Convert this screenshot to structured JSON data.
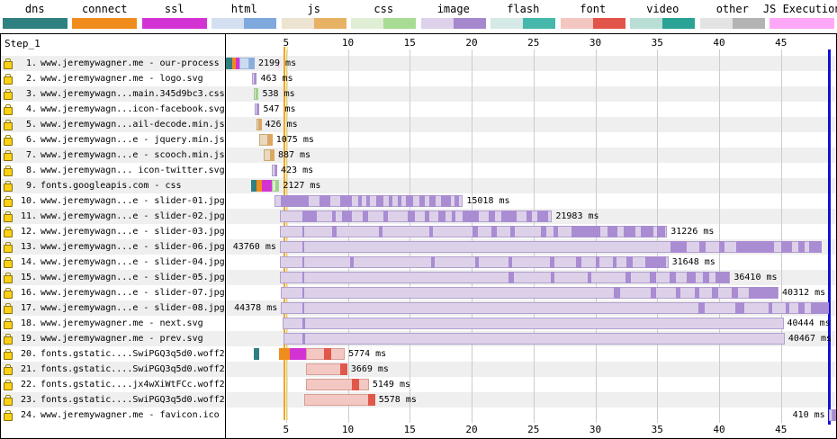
{
  "step_label": "Step_1",
  "legend": {
    "items": [
      {
        "label": "dns",
        "style": "solid",
        "color": "#2f8080"
      },
      {
        "label": "connect",
        "style": "solid",
        "color": "#f08c1c"
      },
      {
        "label": "ssl",
        "style": "solid",
        "color": "#d433d4"
      },
      {
        "label": "html",
        "style": "duo",
        "light": "#d2e0f2",
        "dark": "#7fa8dc"
      },
      {
        "label": "js",
        "style": "duo",
        "light": "#ece3d0",
        "dark": "#e8b265"
      },
      {
        "label": "css",
        "style": "duo",
        "light": "#e0eed6",
        "dark": "#a8dc94"
      },
      {
        "label": "image",
        "style": "duo",
        "light": "#ded2ea",
        "dark": "#a688ce"
      },
      {
        "label": "flash",
        "style": "duo",
        "light": "#d5eae6",
        "dark": "#45b8ab"
      },
      {
        "label": "font",
        "style": "duo",
        "light": "#f4c6c1",
        "dark": "#e25449"
      },
      {
        "label": "video",
        "style": "duo",
        "light": "#b8ded6",
        "dark": "#2aa396"
      },
      {
        "label": "other",
        "style": "duo",
        "light": "#e3e3e3",
        "dark": "#b3b3b3"
      },
      {
        "label": "JS Execution",
        "style": "solid",
        "color": "#ffa8f8"
      }
    ]
  },
  "colors": {
    "dns": "#2f8080",
    "connect": "#f08c1c",
    "ssl": "#d433d4",
    "html_l": "#ccdcf0",
    "html_d": "#88aede",
    "js_l": "#ead9bf",
    "js_d": "#e0a55e",
    "css_l": "#dcecd3",
    "css_d": "#9fd48c",
    "img_l": "#ddd1e9",
    "img_d": "#a98cd2",
    "font_l": "#f3c8c3",
    "font_d": "#e05849",
    "jsx": "#ff9cf0"
  },
  "borders": {
    "img_l": "#b1a0ce",
    "font_l": "#d89d94",
    "html_l": "#9cb4d8",
    "js_l": "#c8ab72",
    "css_l": "#a3c98f"
  },
  "chart_data": {
    "type": "waterfall",
    "title": "Step_1",
    "x_axis": {
      "unit": "seconds",
      "ticks": [
        5,
        10,
        15,
        20,
        25,
        30,
        35,
        40,
        45
      ],
      "range": [
        0,
        49.5
      ]
    },
    "events": [
      {
        "name": "start-render-line",
        "color": "#f2a71e",
        "t": 4.87,
        "width": 2
      },
      {
        "name": "first-paint-line",
        "color": "#ffe87a",
        "t": 5.13,
        "width": 1
      },
      {
        "name": "document-complete-line",
        "color": "#1010dd",
        "t": 48.9,
        "width": 3
      }
    ],
    "rows": [
      {
        "n": 1,
        "url": "www.jeremywagner.me - our-process",
        "ms": 2199,
        "ms_label": "2199 ms",
        "label_side": "after",
        "secure": true,
        "segments": [
          [
            "dns",
            0.07,
            0.62
          ],
          [
            "connect",
            0.62,
            0.98
          ],
          [
            "ssl",
            0.98,
            1.27
          ],
          [
            "html_l",
            1.27,
            2.04
          ],
          [
            "html_d",
            2.04,
            2.47
          ],
          [
            "jsx",
            4.33,
            4.47
          ]
        ]
      },
      {
        "n": 2,
        "url": "www.jeremywagner.me - logo.svg",
        "ms": 463,
        "ms_label": "463 ms",
        "label_side": "after",
        "secure": true,
        "segments": [
          [
            "img_l",
            2.25,
            2.47
          ],
          [
            "img_d",
            2.47,
            2.65
          ]
        ]
      },
      {
        "n": 3,
        "url": "www.jeremywagn...main.345d9bc3.css",
        "ms": 538,
        "ms_label": "538 ms",
        "label_side": "after",
        "secure": true,
        "segments": [
          [
            "css_l",
            2.4,
            2.62
          ],
          [
            "css_d",
            2.62,
            2.8
          ]
        ]
      },
      {
        "n": 4,
        "url": "www.jeremywagn...icon-facebook.svg",
        "ms": 547,
        "ms_label": "547 ms",
        "label_side": "after",
        "secure": true,
        "segments": [
          [
            "img_l",
            2.47,
            2.69
          ],
          [
            "img_d",
            2.69,
            2.87
          ]
        ]
      },
      {
        "n": 5,
        "url": "www.jeremywagn...ail-decode.min.js",
        "ms": 426,
        "ms_label": "426 ms",
        "label_side": "after",
        "secure": true,
        "segments": [
          [
            "js_l",
            2.62,
            2.84
          ],
          [
            "js_d",
            2.84,
            3.02
          ]
        ]
      },
      {
        "n": 6,
        "url": "www.jeremywagn...e - jquery.min.js",
        "ms": 1075,
        "ms_label": "1075 ms",
        "label_side": "after",
        "secure": true,
        "segments": [
          [
            "js_l",
            2.84,
            3.56
          ],
          [
            "js_d",
            3.56,
            3.91
          ]
        ]
      },
      {
        "n": 7,
        "url": "www.jeremywagn...e - scooch.min.js",
        "ms": 887,
        "ms_label": "887 ms",
        "label_side": "after",
        "secure": true,
        "segments": [
          [
            "js_l",
            3.2,
            3.78
          ],
          [
            "js_d",
            3.78,
            4.07
          ]
        ]
      },
      {
        "n": 8,
        "url": "www.jeremywagn... icon-twitter.svg",
        "ms": 423,
        "ms_label": "423 ms",
        "label_side": "after",
        "secure": true,
        "segments": [
          [
            "img_l",
            3.85,
            4.15
          ],
          [
            "img_d",
            4.15,
            4.29
          ]
        ]
      },
      {
        "n": 9,
        "url": "fonts.googleapis.com - css",
        "ms": 2127,
        "ms_label": "2127 ms",
        "label_side": "after",
        "secure": true,
        "segments": [
          [
            "dns",
            2.18,
            2.62
          ],
          [
            "connect",
            2.62,
            3.05
          ],
          [
            "ssl",
            3.05,
            3.85
          ],
          [
            "css_l",
            3.85,
            4.22
          ],
          [
            "css_d",
            4.22,
            4.46
          ]
        ]
      },
      {
        "n": 10,
        "url": "www.jeremywagn...e - slider-01.jpg",
        "ms": 15018,
        "ms_label": "15018 ms",
        "label_side": "after",
        "secure": true,
        "segments": [
          [
            "img_l",
            4.07,
            19.3
          ],
          [
            "img_d",
            4.55,
            6.8
          ],
          [
            "img_d",
            7.7,
            8.6
          ],
          [
            "img_d",
            9.4,
            10.3
          ],
          [
            "img_d",
            10.8,
            11.1
          ],
          [
            "img_d",
            11.5,
            11.8
          ],
          [
            "img_d",
            12.3,
            12.9
          ],
          [
            "img_d",
            13.3,
            13.6
          ],
          [
            "img_d",
            14.0,
            14.3
          ],
          [
            "img_d",
            14.7,
            15.3
          ],
          [
            "img_d",
            15.8,
            16.2
          ],
          [
            "img_d",
            16.6,
            17.1
          ],
          [
            "img_d",
            17.5,
            18.3
          ],
          [
            "img_d",
            18.6,
            19.0
          ]
        ]
      },
      {
        "n": 11,
        "url": "www.jeremywagn...e - slider-02.jpg",
        "ms": 21983,
        "ms_label": "21983 ms",
        "label_side": "after",
        "secure": true,
        "segments": [
          [
            "img_l",
            4.5,
            26.5
          ],
          [
            "img_d",
            6.3,
            7.5
          ],
          [
            "img_d",
            8.7,
            9.0
          ],
          [
            "img_d",
            9.5,
            10.3
          ],
          [
            "img_d",
            11.2,
            11.6
          ],
          [
            "img_d",
            12.9,
            13.2
          ],
          [
            "img_d",
            14.8,
            15.4
          ],
          [
            "img_d",
            16.2,
            16.6
          ],
          [
            "img_d",
            17.3,
            17.9
          ],
          [
            "img_d",
            18.4,
            18.7
          ],
          [
            "img_d",
            19.3,
            20.6
          ],
          [
            "img_d",
            21.4,
            21.9
          ],
          [
            "img_d",
            22.4,
            23.6
          ],
          [
            "img_d",
            24.4,
            24.9
          ],
          [
            "img_d",
            25.3,
            26.2
          ]
        ]
      },
      {
        "n": 12,
        "url": "www.jeremywagn...e - slider-03.jpg",
        "ms": 31226,
        "ms_label": "31226 ms",
        "label_side": "after",
        "secure": true,
        "segments": [
          [
            "img_l",
            4.5,
            35.8
          ],
          [
            "img_d",
            6.35,
            6.5
          ],
          [
            "img_d",
            8.7,
            9.1
          ],
          [
            "img_d",
            12.5,
            12.8
          ],
          [
            "img_d",
            16.6,
            16.9
          ],
          [
            "img_d",
            20.1,
            20.5
          ],
          [
            "img_d",
            21.6,
            22.0
          ],
          [
            "img_d",
            23.1,
            23.5
          ],
          [
            "img_d",
            25.6,
            26.0
          ],
          [
            "img_d",
            26.6,
            27.0
          ],
          [
            "img_d",
            28.1,
            30.4
          ],
          [
            "img_d",
            31.0,
            31.8
          ],
          [
            "img_d",
            32.3,
            33.2
          ],
          [
            "img_d",
            33.7,
            34.7
          ],
          [
            "img_d",
            35.0,
            35.6
          ]
        ]
      },
      {
        "n": 13,
        "url": "www.jeremywagn...e - slider-06.jpg",
        "ms": 43760,
        "ms_label": "43760 ms",
        "label_side": "before",
        "secure": true,
        "segments": [
          [
            "img_l",
            4.5,
            48.3
          ],
          [
            "img_d",
            6.35,
            6.5
          ],
          [
            "img_d",
            36.1,
            37.4
          ],
          [
            "img_d",
            38.4,
            38.9
          ],
          [
            "img_d",
            40.0,
            40.4
          ],
          [
            "img_d",
            41.4,
            44.4
          ],
          [
            "img_d",
            45.0,
            45.9
          ],
          [
            "img_d",
            46.4,
            46.9
          ],
          [
            "img_d",
            47.3,
            48.3
          ]
        ]
      },
      {
        "n": 14,
        "url": "www.jeremywagn...e - slider-04.jpg",
        "ms": 31648,
        "ms_label": "31648 ms",
        "label_side": "after",
        "secure": true,
        "segments": [
          [
            "img_l",
            4.5,
            35.9
          ],
          [
            "img_d",
            6.35,
            6.5
          ],
          [
            "img_d",
            10.2,
            10.5
          ],
          [
            "img_d",
            16.7,
            17.0
          ],
          [
            "img_d",
            20.3,
            20.6
          ],
          [
            "img_d",
            23.0,
            23.3
          ],
          [
            "img_d",
            26.3,
            26.7
          ],
          [
            "img_d",
            28.4,
            28.9
          ],
          [
            "img_d",
            30.0,
            30.3
          ],
          [
            "img_d",
            31.4,
            31.7
          ],
          [
            "img_d",
            32.5,
            33.0
          ],
          [
            "img_d",
            34.0,
            35.7
          ]
        ]
      },
      {
        "n": 15,
        "url": "www.jeremywagn...e - slider-05.jpg",
        "ms": 36410,
        "ms_label": "36410 ms",
        "label_side": "after",
        "secure": true,
        "segments": [
          [
            "img_l",
            4.5,
            40.9
          ],
          [
            "img_d",
            6.35,
            6.5
          ],
          [
            "img_d",
            23.0,
            23.4
          ],
          [
            "img_d",
            26.4,
            26.7
          ],
          [
            "img_d",
            29.4,
            29.7
          ],
          [
            "img_d",
            32.4,
            32.9
          ],
          [
            "img_d",
            34.4,
            34.9
          ],
          [
            "img_d",
            36.0,
            36.5
          ],
          [
            "img_d",
            37.4,
            38.1
          ],
          [
            "img_d",
            38.7,
            39.2
          ],
          [
            "img_d",
            39.7,
            40.8
          ]
        ]
      },
      {
        "n": 16,
        "url": "www.jeremywagn...e - slider-07.jpg",
        "ms": 40312,
        "ms_label": "40312 ms",
        "label_side": "after",
        "secure": true,
        "segments": [
          [
            "img_l",
            4.6,
            44.8
          ],
          [
            "img_d",
            6.35,
            6.5
          ],
          [
            "img_d",
            31.5,
            32.0
          ],
          [
            "img_d",
            34.5,
            34.9
          ],
          [
            "img_d",
            36.5,
            36.9
          ],
          [
            "img_d",
            38.0,
            38.4
          ],
          [
            "img_d",
            39.4,
            39.9
          ],
          [
            "img_d",
            41.0,
            41.5
          ],
          [
            "img_d",
            42.4,
            44.7
          ]
        ]
      },
      {
        "n": 17,
        "url": "www.jeremywagn...e - slider-08.jpg",
        "ms": 44378,
        "ms_label": "44378 ms",
        "label_side": "before",
        "secure": true,
        "segments": [
          [
            "img_l",
            4.6,
            48.9
          ],
          [
            "img_d",
            6.35,
            6.5
          ],
          [
            "img_d",
            38.3,
            38.8
          ],
          [
            "img_d",
            41.3,
            42.0
          ],
          [
            "img_d",
            44.0,
            44.3
          ],
          [
            "img_d",
            45.4,
            45.7
          ],
          [
            "img_d",
            46.4,
            46.9
          ],
          [
            "img_d",
            47.4,
            48.85
          ]
        ]
      },
      {
        "n": 18,
        "url": "www.jeremywagner.me - next.svg",
        "ms": 40444,
        "ms_label": "40444 ms",
        "label_side": "after",
        "secure": true,
        "segments": [
          [
            "img_l",
            4.75,
            45.2
          ],
          [
            "img_d",
            6.35,
            6.55
          ]
        ]
      },
      {
        "n": 19,
        "url": "www.jeremywagner.me - prev.svg",
        "ms": 40467,
        "ms_label": "40467 ms",
        "label_side": "after",
        "secure": true,
        "segments": [
          [
            "img_l",
            4.8,
            45.3
          ],
          [
            "img_d",
            6.35,
            6.55
          ]
        ]
      },
      {
        "n": 20,
        "url": "fonts.gstatic....SwiPGQ3q5d0.woff2",
        "ms": 5774,
        "ms_label": "5774 ms",
        "label_side": "after",
        "secure": true,
        "segments": [
          [
            "dns",
            2.4,
            2.85
          ],
          [
            "connect",
            4.45,
            5.3
          ],
          [
            "ssl",
            5.3,
            6.6
          ],
          [
            "font_l",
            6.6,
            9.75
          ],
          [
            "font_d",
            8.1,
            8.65
          ]
        ]
      },
      {
        "n": 21,
        "url": "fonts.gstatic....SwiPGQ3q5d0.woff2",
        "ms": 3669,
        "ms_label": "3669 ms",
        "label_side": "after",
        "secure": true,
        "segments": [
          [
            "font_l",
            6.6,
            9.95
          ],
          [
            "font_d",
            9.4,
            9.95
          ]
        ]
      },
      {
        "n": 22,
        "url": "fonts.gstatic....jx4wXiWtFCc.woff2",
        "ms": 5149,
        "ms_label": "5149 ms",
        "label_side": "after",
        "secure": true,
        "segments": [
          [
            "font_l",
            6.6,
            11.7
          ],
          [
            "font_d",
            10.3,
            10.9
          ]
        ]
      },
      {
        "n": 23,
        "url": "fonts.gstatic....SwiPGQ3q5d0.woff2",
        "ms": 5578,
        "ms_label": "5578 ms",
        "label_side": "after",
        "secure": true,
        "segments": [
          [
            "font_l",
            6.45,
            12.2
          ],
          [
            "font_d",
            11.65,
            12.2
          ]
        ]
      },
      {
        "n": 24,
        "url": "www.jeremywagner.me - favicon.ico",
        "ms": 410,
        "ms_label": "410 ms",
        "label_side": "before",
        "secure": true,
        "segments": [
          [
            "img_l",
            48.85,
            49.15
          ],
          [
            "img_d",
            49.15,
            49.42
          ]
        ]
      }
    ]
  }
}
